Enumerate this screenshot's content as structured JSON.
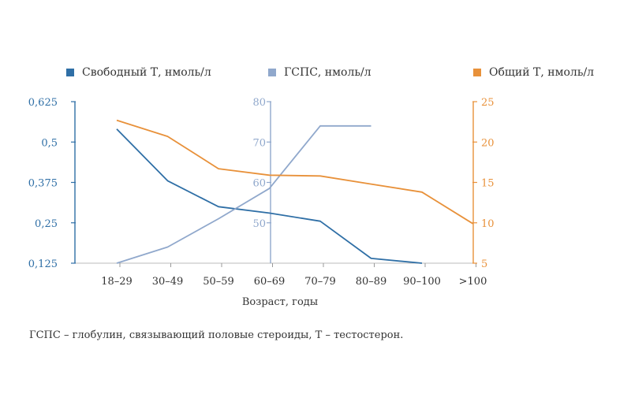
{
  "footnote": "ГСПС – глобулин, связывающий половые стероиды, Т – тестостерон.",
  "chart_data": {
    "type": "line",
    "xlabel": "Возраст, годы",
    "categories": [
      "18–29",
      "30–49",
      "50–59",
      "60–69",
      "70–79",
      "80–89",
      "90–100",
      ">100"
    ],
    "series": [
      {
        "name": "Свободный Т, нмоль/л",
        "color": "#2f6fa6",
        "axis": "left",
        "values": [
          0.54,
          0.38,
          0.3,
          0.28,
          0.255,
          0.14,
          0.125,
          null
        ]
      },
      {
        "name": "ГСПС, нмоль/л",
        "color": "#90a8cc",
        "axis": "middle",
        "values": [
          40,
          44,
          51,
          58.5,
          74,
          74,
          null,
          null
        ]
      },
      {
        "name": "Общий Т, нмоль/л",
        "color": "#e8913a",
        "axis": "right",
        "values": [
          22.7,
          20.7,
          16.7,
          15.9,
          15.8,
          14.8,
          13.8,
          9.9
        ]
      }
    ],
    "axes": {
      "left": {
        "min": 0.125,
        "max": 0.625,
        "ticks": [
          "0,625",
          "0,5",
          "0,375",
          "0,25",
          "0,125"
        ],
        "tick_values": [
          0.625,
          0.5,
          0.375,
          0.25,
          0.125
        ],
        "color": "#2f6fa6"
      },
      "middle": {
        "min": 40,
        "max": 80,
        "ticks": [
          "80",
          "70",
          "60",
          "50"
        ],
        "tick_values": [
          80,
          70,
          60,
          50
        ],
        "color": "#90a8cc"
      },
      "right": {
        "min": 5,
        "max": 25,
        "ticks": [
          "25",
          "20",
          "15",
          "10",
          "5"
        ],
        "tick_values": [
          25,
          20,
          15,
          10,
          5
        ],
        "color": "#e8913a"
      }
    },
    "legend_position": "top"
  }
}
